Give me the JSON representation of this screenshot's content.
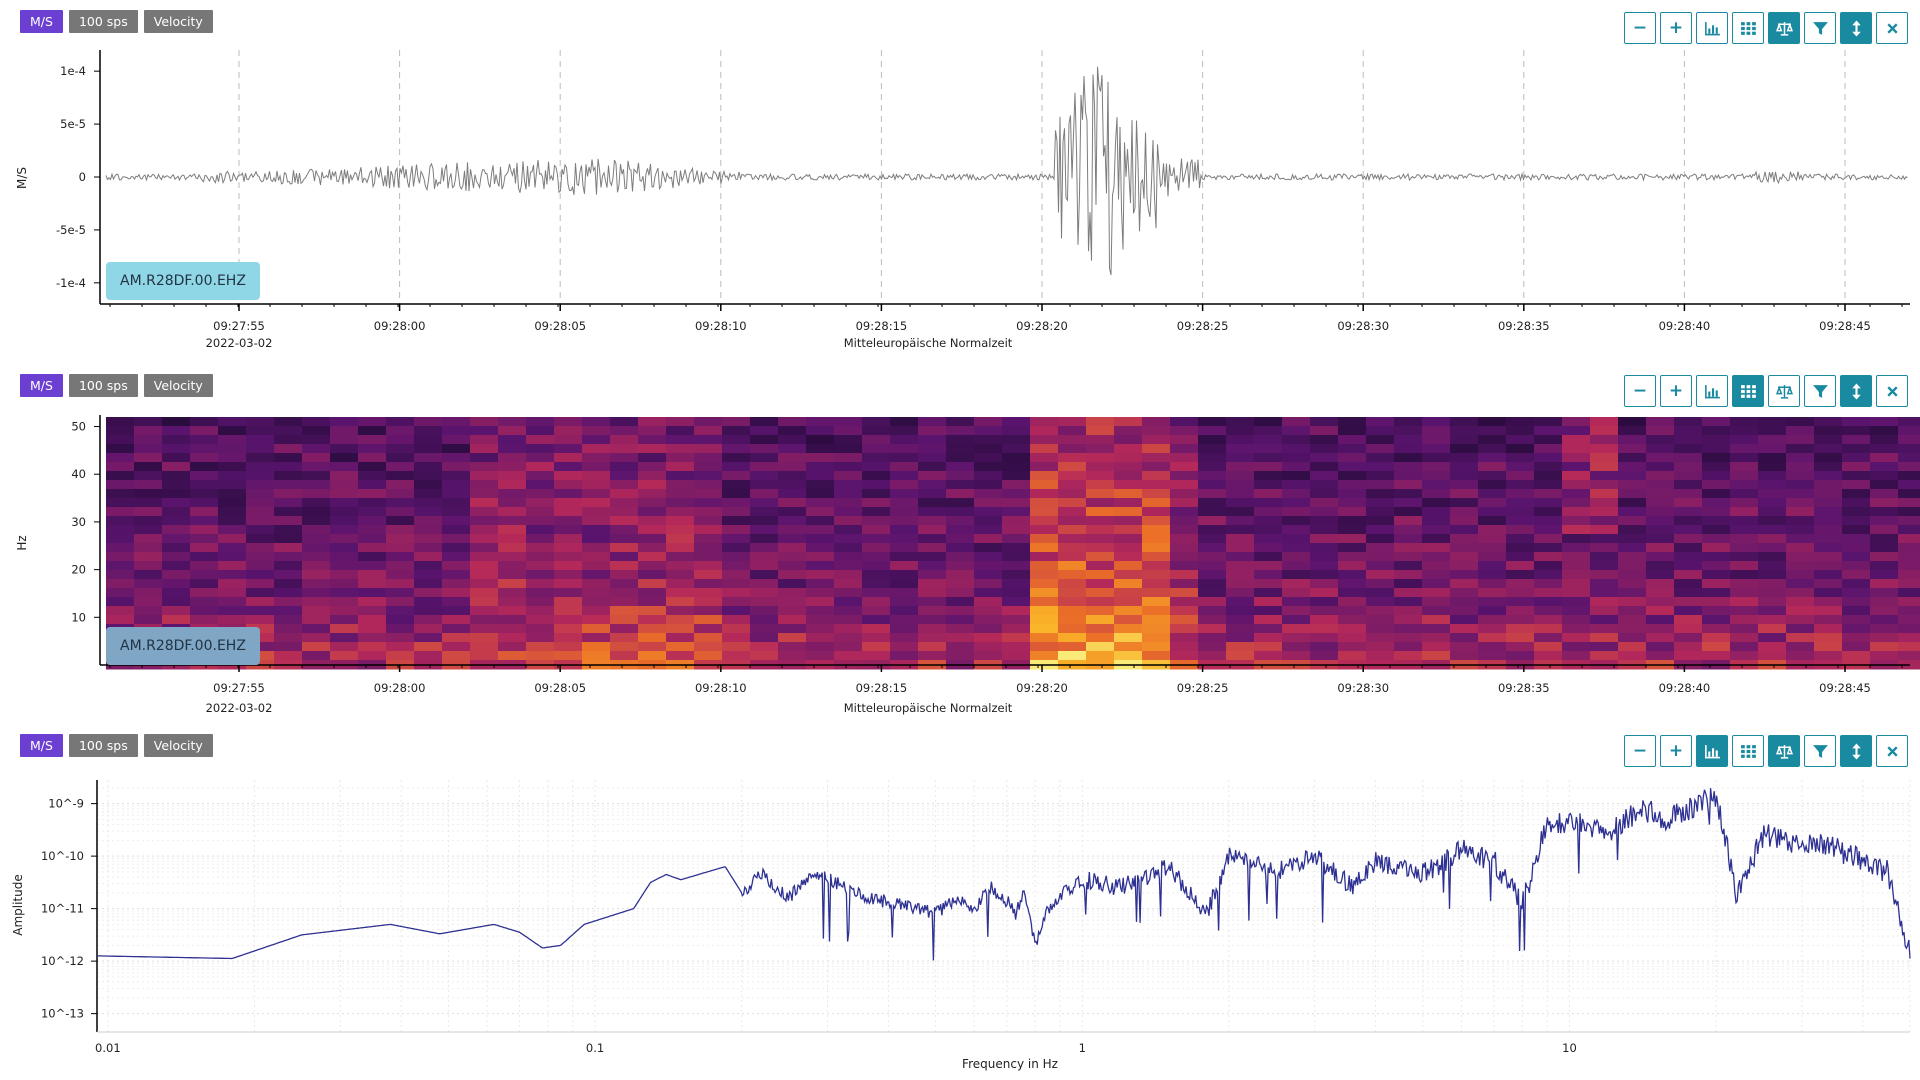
{
  "badges": [
    {
      "unit": "M/S",
      "rate": "100 sps",
      "type": "Velocity"
    },
    {
      "unit": "M/S",
      "rate": "100 sps",
      "type": "Velocity"
    },
    {
      "unit": "M/S",
      "rate": "100 sps",
      "type": "Velocity"
    }
  ],
  "toolbar_icons": [
    "zoom-out-icon",
    "zoom-in-icon",
    "bar-chart-icon",
    "grid-icon",
    "balance-scale-icon",
    "filter-icon",
    "vertical-expand-icon",
    "close-icon"
  ],
  "toolbar_active": [
    [
      false,
      false,
      false,
      false,
      true,
      false,
      true,
      false
    ],
    [
      false,
      false,
      false,
      true,
      false,
      false,
      true,
      false
    ],
    [
      false,
      false,
      true,
      false,
      true,
      false,
      true,
      false
    ]
  ],
  "toolbar_labels": [
    "−",
    "+",
    "",
    "",
    "",
    "",
    "",
    ""
  ],
  "colors": {
    "accent": "#1a8aa0",
    "unit_badge": "#6a3fd1",
    "gray_badge": "#777777",
    "waveform": "#7d7d7d",
    "spectrum": "#2e3192",
    "station_chip_1": "#8fd7e6",
    "station_chip_2": "#7fa7c5"
  },
  "station": "AM.R28DF.00.EHZ",
  "time_axis": {
    "ticks": [
      "09:27:55",
      "09:28:00",
      "09:28:05",
      "09:28:10",
      "09:28:15",
      "09:28:20",
      "09:28:25",
      "09:28:30",
      "09:28:35",
      "09:28:40",
      "09:28:45"
    ],
    "date": "2022-03-02",
    "timezone": "Mitteleuropäische Normalzeit"
  },
  "waveform": {
    "ylabel": "M/S",
    "ytick_labels": [
      "1e-4",
      "5e-5",
      "0",
      "-5e-5",
      "-1e-4"
    ],
    "ytick_values": [
      0.0001,
      5e-05,
      0,
      -5e-05,
      -0.0001
    ],
    "ylim": [
      -0.00012,
      0.00012
    ],
    "event_time": "09:28:20.5"
  },
  "spectrogram": {
    "ylabel": "Hz",
    "ytick_labels": [
      "50",
      "40",
      "30",
      "20",
      "10"
    ],
    "ytick_values": [
      50,
      40,
      30,
      20,
      10
    ],
    "ylim": [
      0,
      52
    ]
  },
  "spectrum": {
    "ylabel": "Amplitude",
    "xlabel": "Frequency in Hz",
    "ytick_labels": [
      "10^-9",
      "10^-10",
      "10^-11",
      "10^-12",
      "10^-13"
    ],
    "ytick_exponents": [
      -9,
      -10,
      -11,
      -12,
      -13
    ],
    "xtick_labels": [
      "0.01",
      "0.1",
      "1",
      "10"
    ],
    "xtick_values": [
      0.01,
      0.1,
      1,
      10
    ],
    "xlim": [
      0.0095,
      50
    ],
    "ylim_exponents": [
      -13.35,
      -8.55
    ],
    "series_points": [
      [
        0.0095,
        -11.9
      ],
      [
        0.018,
        -11.95
      ],
      [
        0.025,
        -11.5
      ],
      [
        0.038,
        -11.3
      ],
      [
        0.048,
        -11.48
      ],
      [
        0.062,
        -11.3
      ],
      [
        0.07,
        -11.45
      ],
      [
        0.078,
        -11.75
      ],
      [
        0.085,
        -11.7
      ],
      [
        0.095,
        -11.3
      ],
      [
        0.12,
        -11.0
      ],
      [
        0.13,
        -10.5
      ],
      [
        0.14,
        -10.35
      ],
      [
        0.15,
        -10.45
      ],
      [
        0.17,
        -10.3
      ],
      [
        0.185,
        -10.2
      ],
      [
        0.2,
        -10.7
      ],
      [
        0.22,
        -10.35
      ],
      [
        0.25,
        -10.8
      ],
      [
        0.28,
        -10.3
      ],
      [
        0.32,
        -10.55
      ],
      [
        0.36,
        -10.8
      ],
      [
        0.42,
        -10.9
      ],
      [
        0.5,
        -11.1
      ],
      [
        0.55,
        -10.8
      ],
      [
        0.6,
        -11.0
      ],
      [
        0.65,
        -10.6
      ],
      [
        0.7,
        -10.85
      ],
      [
        0.73,
        -11.1
      ],
      [
        0.76,
        -10.7
      ],
      [
        0.8,
        -11.7
      ],
      [
        0.85,
        -11.0
      ],
      [
        0.9,
        -10.75
      ],
      [
        1.0,
        -10.45
      ],
      [
        1.2,
        -10.6
      ],
      [
        1.5,
        -10.2
      ],
      [
        1.8,
        -11.1
      ],
      [
        2.0,
        -10.0
      ],
      [
        2.5,
        -10.3
      ],
      [
        3.0,
        -10.0
      ],
      [
        3.6,
        -10.6
      ],
      [
        4.0,
        -10.1
      ],
      [
        5.0,
        -10.35
      ],
      [
        6.0,
        -9.9
      ],
      [
        7.0,
        -10.1
      ],
      [
        8.0,
        -10.9
      ],
      [
        9.0,
        -9.4
      ],
      [
        10.5,
        -9.3
      ],
      [
        12.0,
        -9.6
      ],
      [
        14.0,
        -9.1
      ],
      [
        16.0,
        -9.3
      ],
      [
        18.0,
        -9.05
      ],
      [
        20.0,
        -8.85
      ],
      [
        22.0,
        -10.7
      ],
      [
        25.0,
        -9.6
      ],
      [
        30.0,
        -9.75
      ],
      [
        35.0,
        -9.85
      ],
      [
        40.0,
        -10.1
      ],
      [
        45.0,
        -10.3
      ],
      [
        50.0,
        -11.9
      ]
    ]
  }
}
